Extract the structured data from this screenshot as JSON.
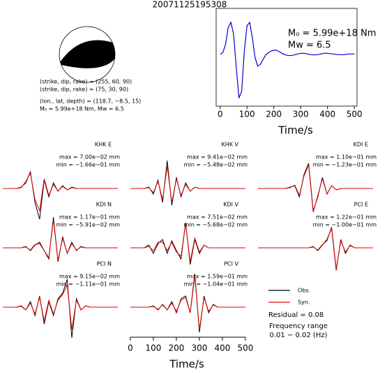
{
  "chart_data": [
    {
      "type": "line",
      "title": "20071125195308",
      "annotations": [
        "M₀ = 5.99e+18 Nm",
        "Mw = 6.5"
      ],
      "mechanism": [
        "(strike, dip, rake) = (255, 60, 90)",
        "(strike, dip, rake) = (75, 30, 90)",
        "(lon., lat, depth) = (118.7, −8.5, 15)",
        "M₀ = 5.99e+18 Nm, Mw = 6.5"
      ],
      "x": [
        0,
        10,
        20,
        30,
        40,
        50,
        60,
        70,
        80,
        90,
        100,
        110,
        120,
        130,
        140,
        150,
        160,
        170,
        180,
        190,
        200,
        210,
        220,
        230,
        240,
        250,
        260,
        270,
        280,
        290,
        300,
        310,
        320,
        330,
        340,
        350,
        360,
        370,
        380,
        390,
        400,
        410,
        420,
        430,
        440,
        450,
        460,
        470,
        480,
        490,
        500
      ],
      "values": [
        0,
        0.05,
        0.3,
        0.8,
        0.95,
        0.6,
        -0.4,
        -1.3,
        -1.1,
        0.1,
        0.85,
        0.95,
        0.5,
        -0.1,
        -0.35,
        -0.3,
        -0.15,
        -0.02,
        0.05,
        0.1,
        0.12,
        0.12,
        0.08,
        0.03,
        -0.01,
        -0.03,
        -0.04,
        -0.03,
        -0.01,
        0.01,
        0.03,
        0.03,
        0.02,
        0,
        -0.01,
        -0.02,
        -0.01,
        0,
        0.02,
        0.03,
        0.03,
        0.02,
        0.01,
        0,
        -0.01,
        -0.01,
        -0.01,
        0,
        0.01,
        0.01,
        0.01
      ],
      "color": "#0000cc",
      "xlim": [
        -15,
        510
      ],
      "xticks": [
        0,
        100,
        200,
        300,
        400,
        500
      ],
      "ylim": [
        -1.5,
        1.2
      ],
      "xlabel": "Time/s"
    },
    {
      "type": "waveform",
      "x": [
        0,
        20,
        40,
        60,
        80,
        100,
        120,
        140,
        160,
        180,
        200,
        220,
        240,
        260,
        280,
        300,
        320,
        340,
        360,
        380,
        400,
        420,
        440,
        460,
        480,
        500
      ],
      "xlim": [
        -6,
        520
      ],
      "xticks": [
        0,
        100,
        200,
        300,
        400,
        500
      ],
      "xlabel": "Time/s",
      "legend": [
        {
          "name": "Obs.",
          "color": "#000000"
        },
        {
          "name": "Syn.",
          "color": "#e00000"
        }
      ],
      "notes": [
        "Residual = 0.08",
        "Frequency range",
        "0.01 − 0.02 (Hz)"
      ],
      "panels": [
        {
          "name": "KHK E",
          "max": "max = 7.00e−02 mm",
          "min": "min = −1.66e−01 mm",
          "obs": [
            0,
            0,
            0,
            0,
            0.05,
            0.2,
            0.6,
            -0.5,
            -1.1,
            0.3,
            -0.3,
            0.2,
            -0.1,
            0.1,
            -0.05,
            0.05,
            0,
            0,
            0,
            0,
            0,
            0,
            0,
            0,
            0,
            0
          ],
          "syn": [
            0,
            0,
            0,
            0,
            0.03,
            0.25,
            0.55,
            -0.4,
            -0.8,
            0.35,
            -0.25,
            0.15,
            -0.1,
            0.08,
            -0.05,
            0.03,
            0,
            0,
            0,
            0,
            0,
            0,
            0,
            0,
            0,
            0
          ]
        },
        {
          "name": "KHK V",
          "max": "max = 9.41e−02 mm",
          "min": "min = −5.48e−02 mm",
          "obs": [
            0,
            0,
            0,
            0,
            0.05,
            -0.2,
            0.3,
            -0.5,
            1.0,
            -0.6,
            0.4,
            -0.3,
            0.2,
            -0.1,
            0.05,
            0,
            0,
            0,
            0,
            0,
            0,
            0,
            0,
            0,
            0,
            0
          ],
          "syn": [
            0,
            0,
            0,
            0,
            0.03,
            -0.15,
            0.25,
            -0.4,
            0.8,
            -0.5,
            0.35,
            -0.25,
            0.15,
            -0.1,
            0.05,
            0,
            0,
            0,
            0,
            0,
            0,
            0,
            0,
            0,
            0,
            0
          ]
        },
        {
          "name": "KDI E",
          "max": "max = 1.10e−01 mm",
          "min": "min = −1.23e−01 mm",
          "obs": [
            0,
            0,
            0,
            0,
            0,
            0,
            0,
            0.05,
            0.1,
            -0.3,
            0.5,
            0.9,
            -0.8,
            -0.3,
            0.4,
            -0.2,
            0.1,
            -0.05,
            0,
            0,
            0,
            0,
            0,
            0,
            0,
            0
          ],
          "syn": [
            0,
            0,
            0,
            0,
            0,
            0,
            0,
            0.03,
            0.12,
            -0.25,
            0.45,
            0.85,
            -0.85,
            -0.25,
            0.35,
            -0.2,
            0.1,
            -0.05,
            0,
            0,
            0,
            0,
            0,
            0,
            0,
            0
          ]
        },
        {
          "name": "KDI N",
          "max": "max = 1.17e−01 mm",
          "min": "min = −5.91e−02 mm",
          "obs": [
            0,
            0,
            0,
            0,
            0,
            0.05,
            -0.1,
            0.1,
            0.2,
            -0.1,
            -0.4,
            1.1,
            -0.5,
            0.4,
            -0.2,
            0.2,
            -0.1,
            0.05,
            0,
            0,
            0,
            0,
            0,
            0,
            0,
            0
          ],
          "syn": [
            0,
            0,
            0,
            0,
            0,
            0.03,
            -0.08,
            0.12,
            0.15,
            -0.1,
            -0.35,
            1.0,
            -0.45,
            0.35,
            -0.2,
            0.15,
            -0.08,
            0.03,
            0,
            0,
            0,
            0,
            0,
            0,
            0,
            0
          ]
        },
        {
          "name": "KDI V",
          "max": "max = 7.51e−02 mm",
          "min": "min = −5.68e−02 mm",
          "obs": [
            0,
            0,
            0,
            0,
            0.1,
            -0.2,
            0.15,
            0.3,
            -0.2,
            0.25,
            -0.1,
            -0.4,
            0.9,
            -0.6,
            0.3,
            -0.2,
            0.1,
            0,
            0,
            0,
            0,
            0,
            0,
            0,
            0,
            0
          ],
          "syn": [
            0,
            0,
            0,
            0,
            0.05,
            -0.1,
            0.2,
            0.2,
            -0.1,
            0.2,
            -0.15,
            -0.3,
            0.85,
            -0.5,
            0.35,
            -0.15,
            0.1,
            0,
            0,
            0,
            0,
            0,
            0,
            0,
            0,
            0
          ]
        },
        {
          "name": "PCI E",
          "max": "max = 1.22e−01 mm",
          "min": "min = −1.00e−01 mm",
          "obs": [
            0,
            0,
            0,
            0,
            0,
            0,
            0,
            0,
            0,
            0,
            0,
            0,
            0.05,
            -0.1,
            0.1,
            0.3,
            0.7,
            -0.8,
            0.3,
            -0.2,
            0.1,
            0,
            0,
            0,
            0,
            0
          ],
          "syn": [
            0,
            0,
            0,
            0,
            0,
            0,
            0,
            0,
            0,
            0,
            0,
            0,
            0.03,
            -0.08,
            0.12,
            0.25,
            0.75,
            -0.75,
            0.25,
            -0.15,
            0.08,
            0,
            0,
            0,
            0,
            0
          ]
        },
        {
          "name": "PCI N",
          "max": "max = 9.15e−02 mm",
          "min": "min = −1.11e−01 mm",
          "obs": [
            0,
            0,
            0,
            0,
            0.05,
            -0.1,
            0.2,
            -0.3,
            0.4,
            -0.6,
            0.2,
            -0.3,
            0.3,
            0.5,
            1.0,
            -1.1,
            0.3,
            -0.1,
            0.05,
            0,
            0,
            0,
            0,
            0,
            0,
            0
          ],
          "syn": [
            0,
            0,
            0,
            0,
            0.03,
            -0.1,
            0.15,
            -0.25,
            0.35,
            -0.5,
            0.25,
            -0.25,
            0.25,
            0.45,
            0.8,
            -0.8,
            0.25,
            -0.1,
            0.05,
            0,
            0,
            0,
            0,
            0,
            0,
            0
          ]
        },
        {
          "name": "PCI V",
          "max": "max = 1.59e−01 mm",
          "min": "min = −1.04e−01 mm",
          "obs": [
            0,
            0,
            0,
            0,
            0,
            0.05,
            -0.1,
            0.1,
            -0.1,
            0.2,
            -0.2,
            0.3,
            0.4,
            -0.2,
            1.2,
            -0.9,
            0.4,
            -0.2,
            0.1,
            0,
            0,
            0,
            0,
            0,
            0,
            0
          ],
          "syn": [
            0,
            0,
            0,
            0,
            0,
            0.03,
            -0.08,
            0.08,
            -0.1,
            0.15,
            -0.15,
            0.25,
            0.35,
            -0.2,
            1.1,
            -0.8,
            0.35,
            -0.15,
            0.08,
            0,
            0,
            0,
            0,
            0,
            0,
            0
          ]
        }
      ]
    }
  ]
}
